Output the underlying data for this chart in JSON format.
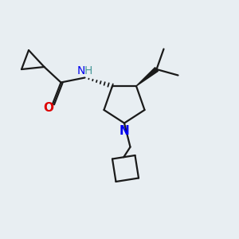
{
  "background_color": "#e8eef2",
  "line_color": "#1a1a1a",
  "N_color": "#0000ee",
  "O_color": "#dd0000",
  "H_color": "#4a9a9a",
  "line_width": 1.6,
  "figsize": [
    3.0,
    3.0
  ],
  "dpi": 100,
  "xlim": [
    0,
    10
  ],
  "ylim": [
    0,
    10
  ]
}
